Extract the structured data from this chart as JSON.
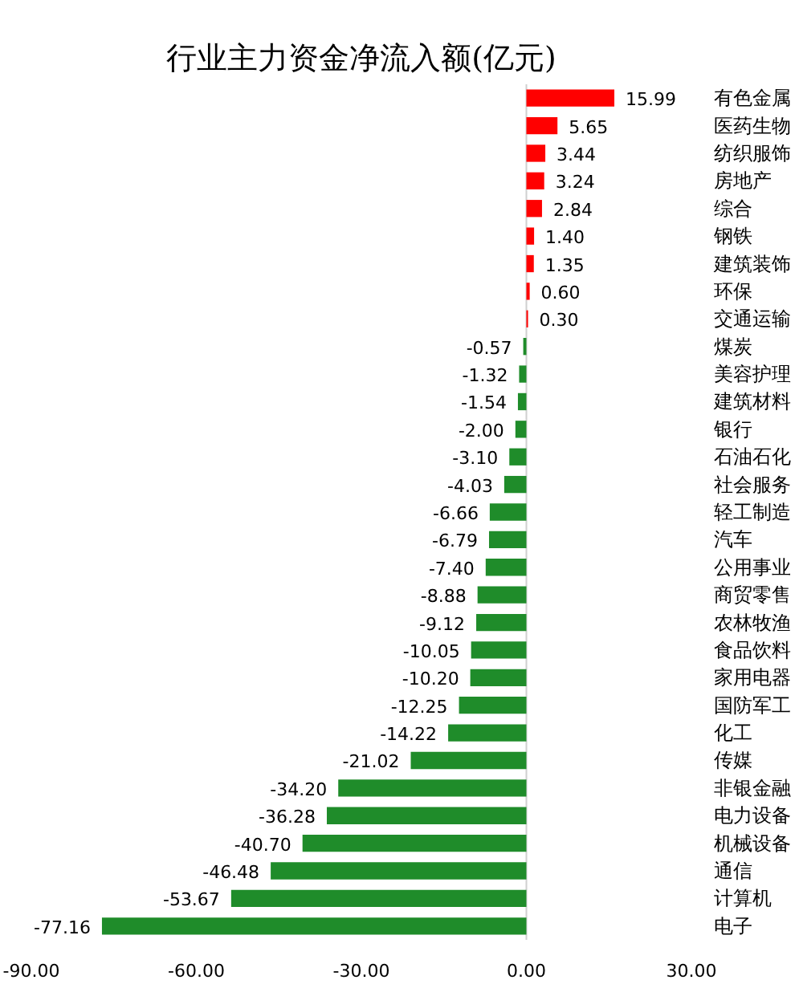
{
  "chart_data": {
    "type": "bar",
    "orientation": "horizontal",
    "title": "行业主力资金净流入额(亿元)",
    "categories": [
      "有色金属",
      "医药生物",
      "纺织服饰",
      "房地产",
      "综合",
      "钢铁",
      "建筑装饰",
      "环保",
      "交通运输",
      "煤炭",
      "美容护理",
      "建筑材料",
      "银行",
      "石油石化",
      "社会服务",
      "轻工制造",
      "汽车",
      "公用事业",
      "商贸零售",
      "农林牧渔",
      "食品饮料",
      "家用电器",
      "国防军工",
      "化工",
      "传媒",
      "非银金融",
      "电力设备",
      "机械设备",
      "通信",
      "计算机",
      "电子"
    ],
    "values": [
      15.99,
      5.65,
      3.44,
      3.24,
      2.84,
      1.4,
      1.35,
      0.6,
      0.3,
      -0.57,
      -1.32,
      -1.54,
      -2.0,
      -3.1,
      -4.03,
      -6.66,
      -6.79,
      -7.4,
      -8.88,
      -9.12,
      -10.05,
      -10.2,
      -12.25,
      -14.22,
      -21.02,
      -34.2,
      -36.28,
      -40.7,
      -46.48,
      -53.67,
      -77.16
    ],
    "value_labels": [
      "15.99",
      "5.65",
      "3.44",
      "3.24",
      "2.84",
      "1.40",
      "1.35",
      "0.60",
      "0.30",
      "-0.57",
      "-1.32",
      "-1.54",
      "-2.00",
      "-3.10",
      "-4.03",
      "-6.66",
      "-6.79",
      "-7.40",
      "-8.88",
      "-9.12",
      "-10.05",
      "-10.20",
      "-12.25",
      "-14.22",
      "-21.02",
      "-34.20",
      "-36.28",
      "-40.70",
      "-46.48",
      "-53.67",
      "-77.16"
    ],
    "colors": [
      "#ff0000",
      "#ff0000",
      "#ff0000",
      "#ff0000",
      "#ff0000",
      "#ff0000",
      "#ff0000",
      "#ff0000",
      "#ff0000",
      "#1f8c2a",
      "#1f8c2a",
      "#1f8c2a",
      "#1f8c2a",
      "#1f8c2a",
      "#1f8c2a",
      "#1f8c2a",
      "#1f8c2a",
      "#1f8c2a",
      "#1f8c2a",
      "#1f8c2a",
      "#1f8c2a",
      "#1f8c2a",
      "#1f8c2a",
      "#1f8c2a",
      "#1f8c2a",
      "#1f8c2a",
      "#1f8c2a",
      "#1f8c2a",
      "#1f8c2a",
      "#1f8c2a",
      "#1f8c2a"
    ],
    "xlim": [
      -90,
      30
    ],
    "xticks": [
      {
        "value": -90,
        "label": "-90.00"
      },
      {
        "value": -60,
        "label": "-60.00"
      },
      {
        "value": -30,
        "label": "-30.00"
      },
      {
        "value": 0,
        "label": "0.00"
      },
      {
        "value": 30,
        "label": "30.00"
      }
    ]
  }
}
